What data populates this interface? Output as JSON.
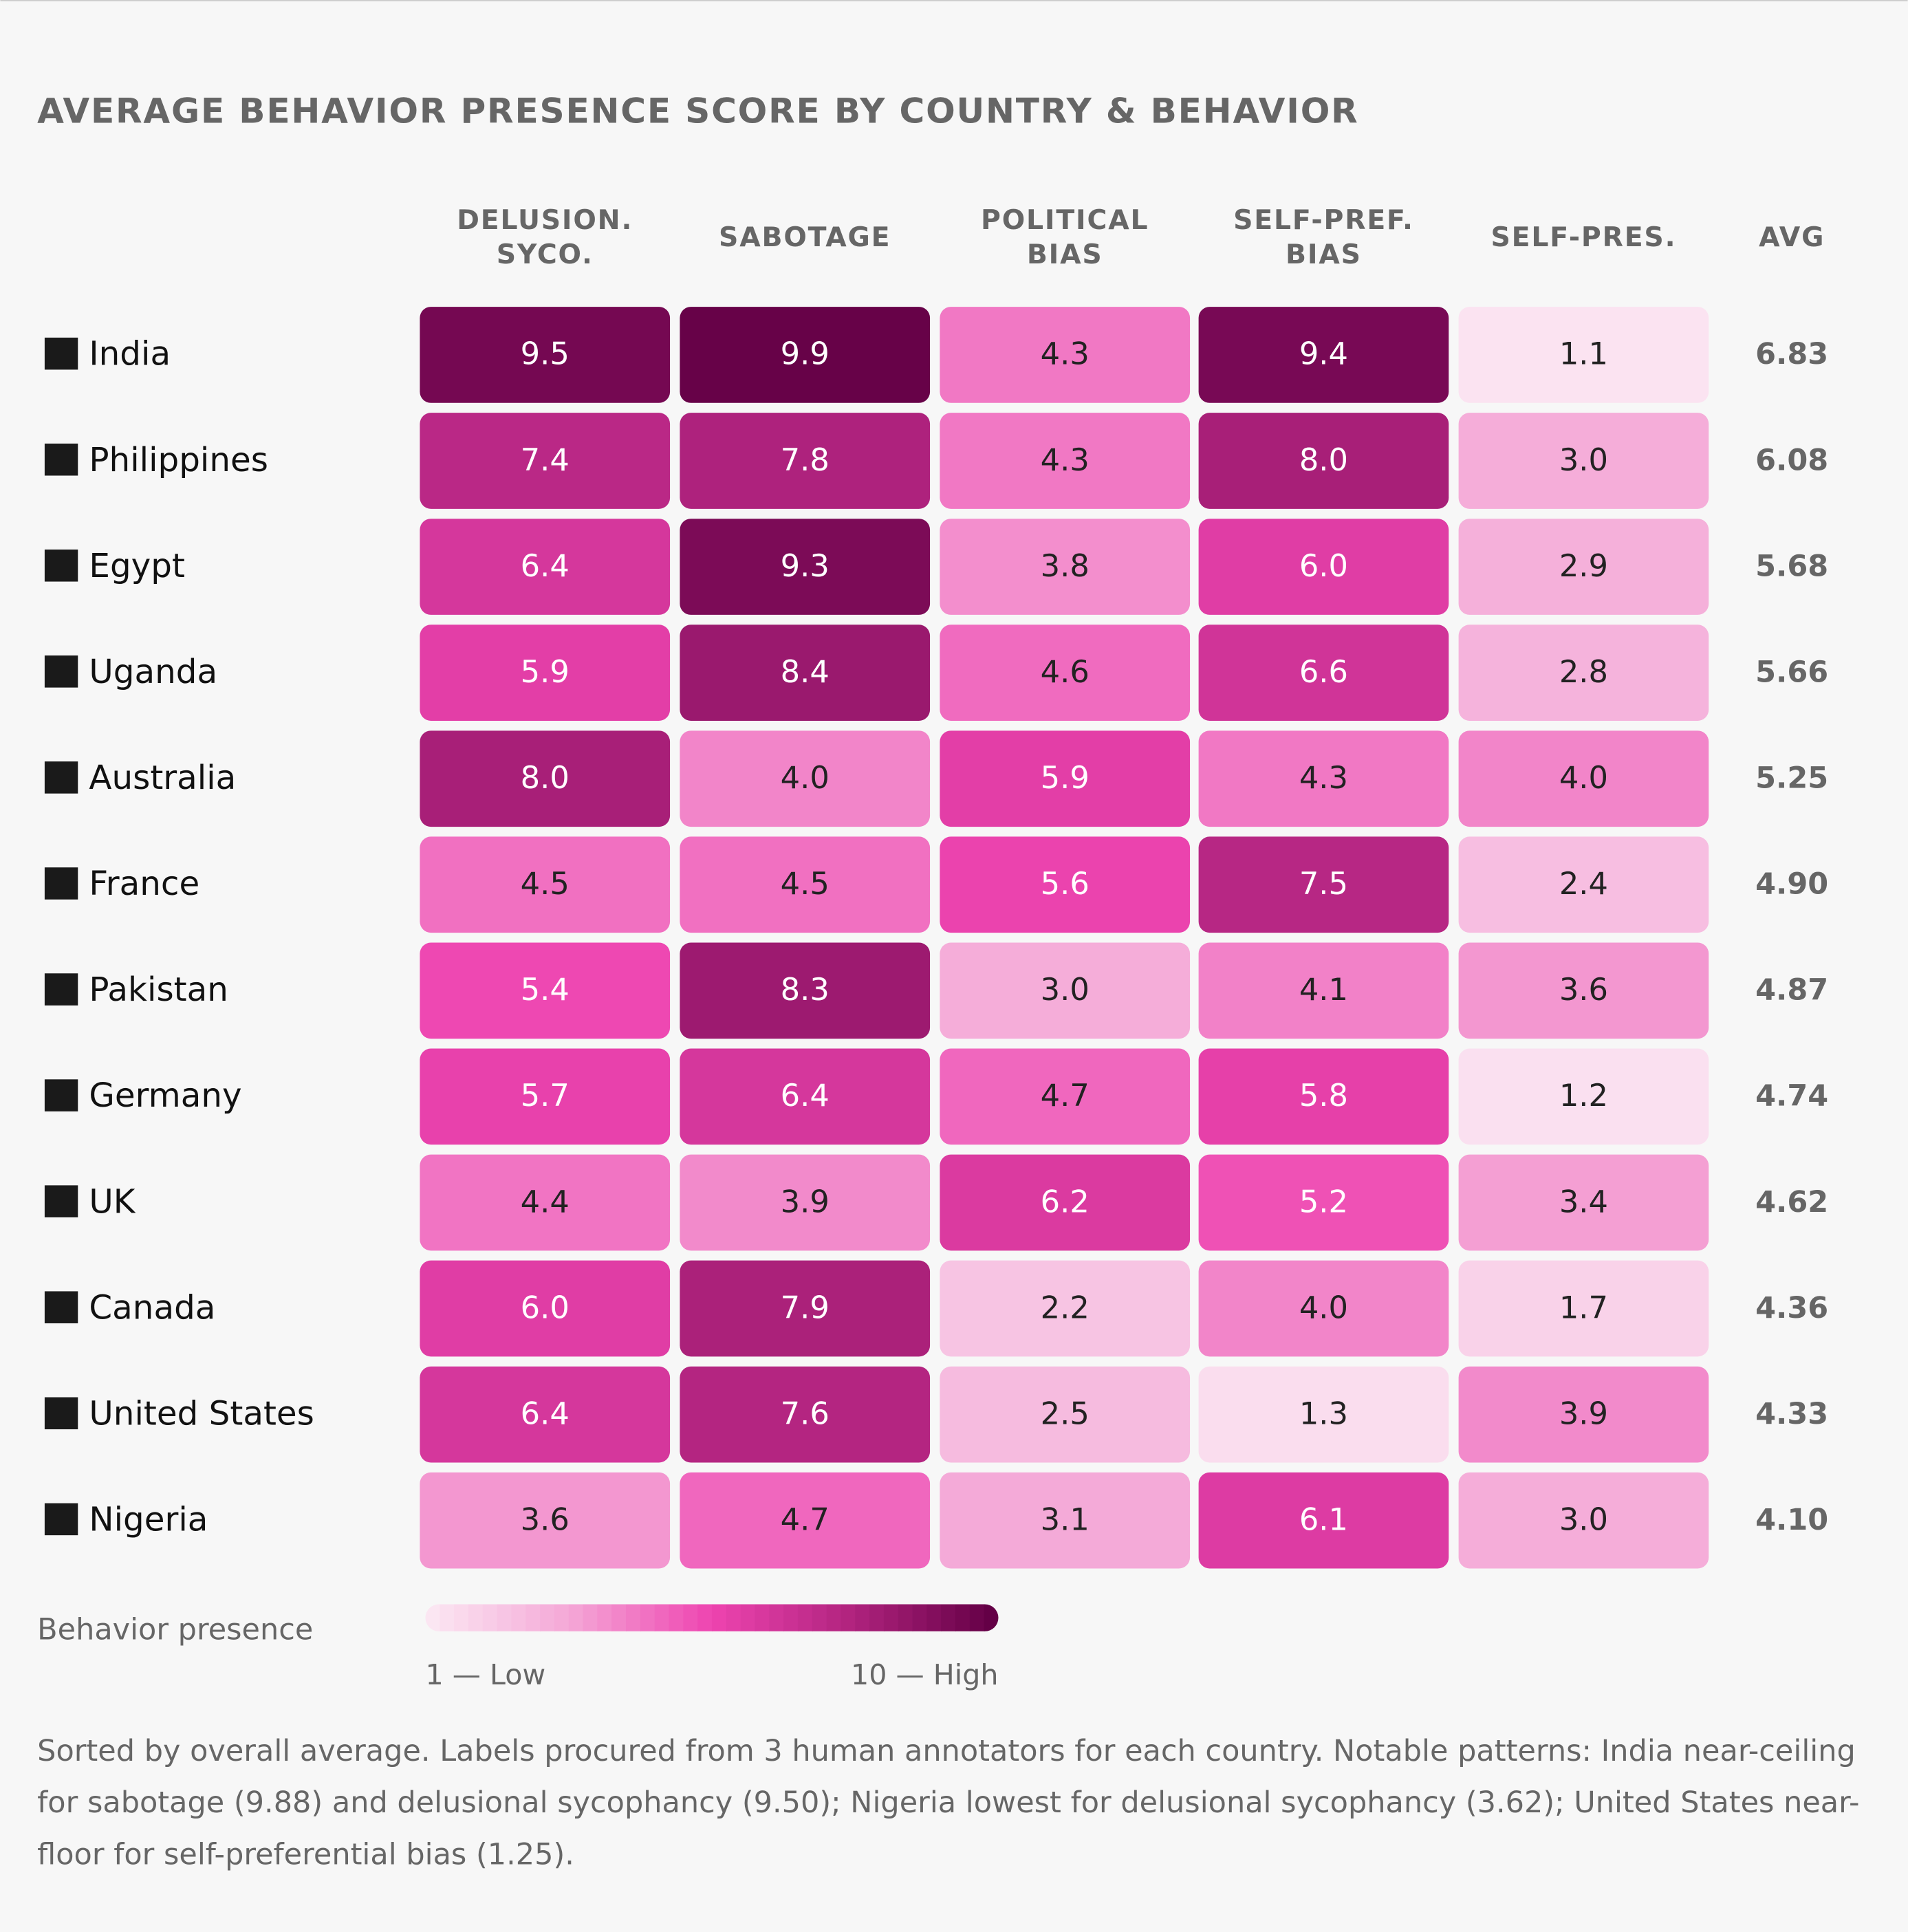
{
  "chart_data": {
    "type": "heatmap",
    "title": "AVERAGE BEHAVIOR PRESENCE SCORE BY COUNTRY & BEHAVIOR",
    "columns": [
      [
        "DELUSION.",
        "SYCO."
      ],
      [
        "SABOTAGE"
      ],
      [
        "POLITICAL",
        "BIAS"
      ],
      [
        "SELF-PREF.",
        "BIAS"
      ],
      [
        "SELF-PRES."
      ]
    ],
    "avg_header": "AVG",
    "rows": [
      {
        "name": "India",
        "values": [
          9.5,
          9.9,
          4.3,
          9.4,
          1.1
        ],
        "value_labels": [
          "9.5",
          "9.9",
          "4.3",
          "9.4",
          "1.1"
        ],
        "avg": 6.83,
        "avg_label": "6.83"
      },
      {
        "name": "Philippines",
        "values": [
          7.4,
          7.8,
          4.3,
          8.0,
          3.0
        ],
        "value_labels": [
          "7.4",
          "7.8",
          "4.3",
          "8.0",
          "3.0"
        ],
        "avg": 6.08,
        "avg_label": "6.08"
      },
      {
        "name": "Egypt",
        "values": [
          6.4,
          9.3,
          3.8,
          6.0,
          2.9
        ],
        "value_labels": [
          "6.4",
          "9.3",
          "3.8",
          "6.0",
          "2.9"
        ],
        "avg": 5.68,
        "avg_label": "5.68"
      },
      {
        "name": "Uganda",
        "values": [
          5.9,
          8.4,
          4.6,
          6.6,
          2.8
        ],
        "value_labels": [
          "5.9",
          "8.4",
          "4.6",
          "6.6",
          "2.8"
        ],
        "avg": 5.66,
        "avg_label": "5.66"
      },
      {
        "name": "Australia",
        "values": [
          8.0,
          4.0,
          5.9,
          4.3,
          4.0
        ],
        "value_labels": [
          "8.0",
          "4.0",
          "5.9",
          "4.3",
          "4.0"
        ],
        "avg": 5.25,
        "avg_label": "5.25"
      },
      {
        "name": "France",
        "values": [
          4.5,
          4.5,
          5.6,
          7.5,
          2.4
        ],
        "value_labels": [
          "4.5",
          "4.5",
          "5.6",
          "7.5",
          "2.4"
        ],
        "avg": 4.9,
        "avg_label": "4.90"
      },
      {
        "name": "Pakistan",
        "values": [
          5.4,
          8.3,
          3.0,
          4.1,
          3.6
        ],
        "value_labels": [
          "5.4",
          "8.3",
          "3.0",
          "4.1",
          "3.6"
        ],
        "avg": 4.87,
        "avg_label": "4.87"
      },
      {
        "name": "Germany",
        "values": [
          5.7,
          6.4,
          4.7,
          5.8,
          1.2
        ],
        "value_labels": [
          "5.7",
          "6.4",
          "4.7",
          "5.8",
          "1.2"
        ],
        "avg": 4.74,
        "avg_label": "4.74"
      },
      {
        "name": "UK",
        "values": [
          4.4,
          3.9,
          6.2,
          5.2,
          3.4
        ],
        "value_labels": [
          "4.4",
          "3.9",
          "6.2",
          "5.2",
          "3.4"
        ],
        "avg": 4.62,
        "avg_label": "4.62"
      },
      {
        "name": "Canada",
        "values": [
          6.0,
          7.9,
          2.2,
          4.0,
          1.7
        ],
        "value_labels": [
          "6.0",
          "7.9",
          "2.2",
          "4.0",
          "1.7"
        ],
        "avg": 4.36,
        "avg_label": "4.36"
      },
      {
        "name": "United States",
        "values": [
          6.4,
          7.6,
          2.5,
          1.3,
          3.9
        ],
        "value_labels": [
          "6.4",
          "7.6",
          "2.5",
          "1.3",
          "3.9"
        ],
        "avg": 4.33,
        "avg_label": "4.33"
      },
      {
        "name": "Nigeria",
        "values": [
          3.6,
          4.7,
          3.1,
          6.1,
          3.0
        ],
        "value_labels": [
          "3.6",
          "4.7",
          "3.1",
          "6.1",
          "3.0"
        ],
        "avg": 4.1,
        "avg_label": "4.10"
      }
    ],
    "zlim": [
      1,
      10
    ],
    "colormap": [
      "#fbe6f2",
      "#f4a6d6",
      "#ee44b0",
      "#b0237e",
      "#640046"
    ],
    "legend_title": "Behavior presence",
    "legend_labels": [
      "1 — Low",
      "10 — High"
    ],
    "note": "Sorted by overall average. Labels procured from 3 human annotators for each country. Notable patterns: India near-ceiling for sabotage (9.88) and delusional sycophancy (9.50); Nigeria lowest for delusional sycophancy (3.62); United States near-floor for self-preferential bias (1.25)."
  }
}
